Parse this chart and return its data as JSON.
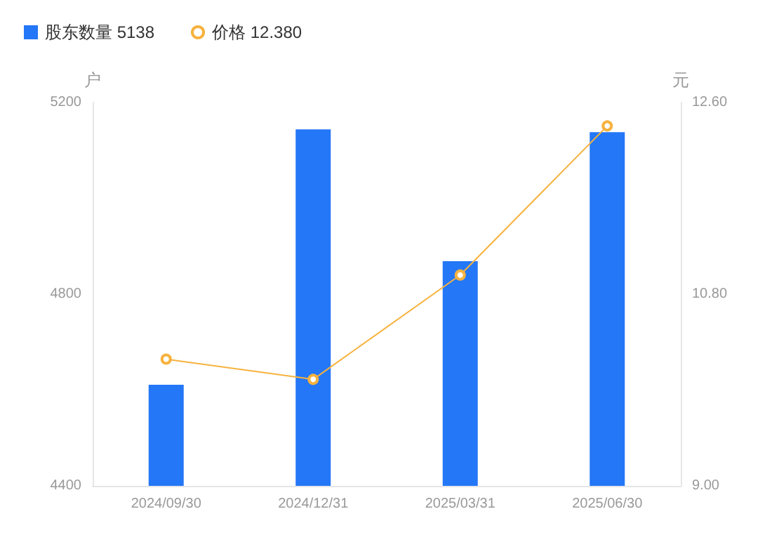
{
  "chart_data": {
    "type": "bar",
    "categories": [
      "2024/09/30",
      "2024/12/31",
      "2025/03/31",
      "2025/06/30"
    ],
    "series": [
      {
        "name": "股东数量 5138",
        "color": "#2477f6",
        "values": [
          4611,
          5144,
          4869,
          5138
        ]
      },
      {
        "name": "价格 12.380",
        "type": "line",
        "axis": "y2",
        "color": "#f6b23e",
        "values": [
          10.19,
          10.0,
          10.98,
          12.38
        ],
        "marker": "circle"
      }
    ],
    "ylabel": "户",
    "y2label": "元",
    "ylim": [
      4400,
      5200
    ],
    "yticks": [
      4400,
      4800,
      5200
    ],
    "y2lim": [
      9,
      12.6
    ],
    "y2ticks": [
      {
        "value": 9,
        "label": "9.00"
      },
      {
        "value": 10.8,
        "label": "10.80"
      },
      {
        "value": 12.6,
        "label": "12.60"
      }
    ],
    "grid": false,
    "legend": "top left"
  }
}
